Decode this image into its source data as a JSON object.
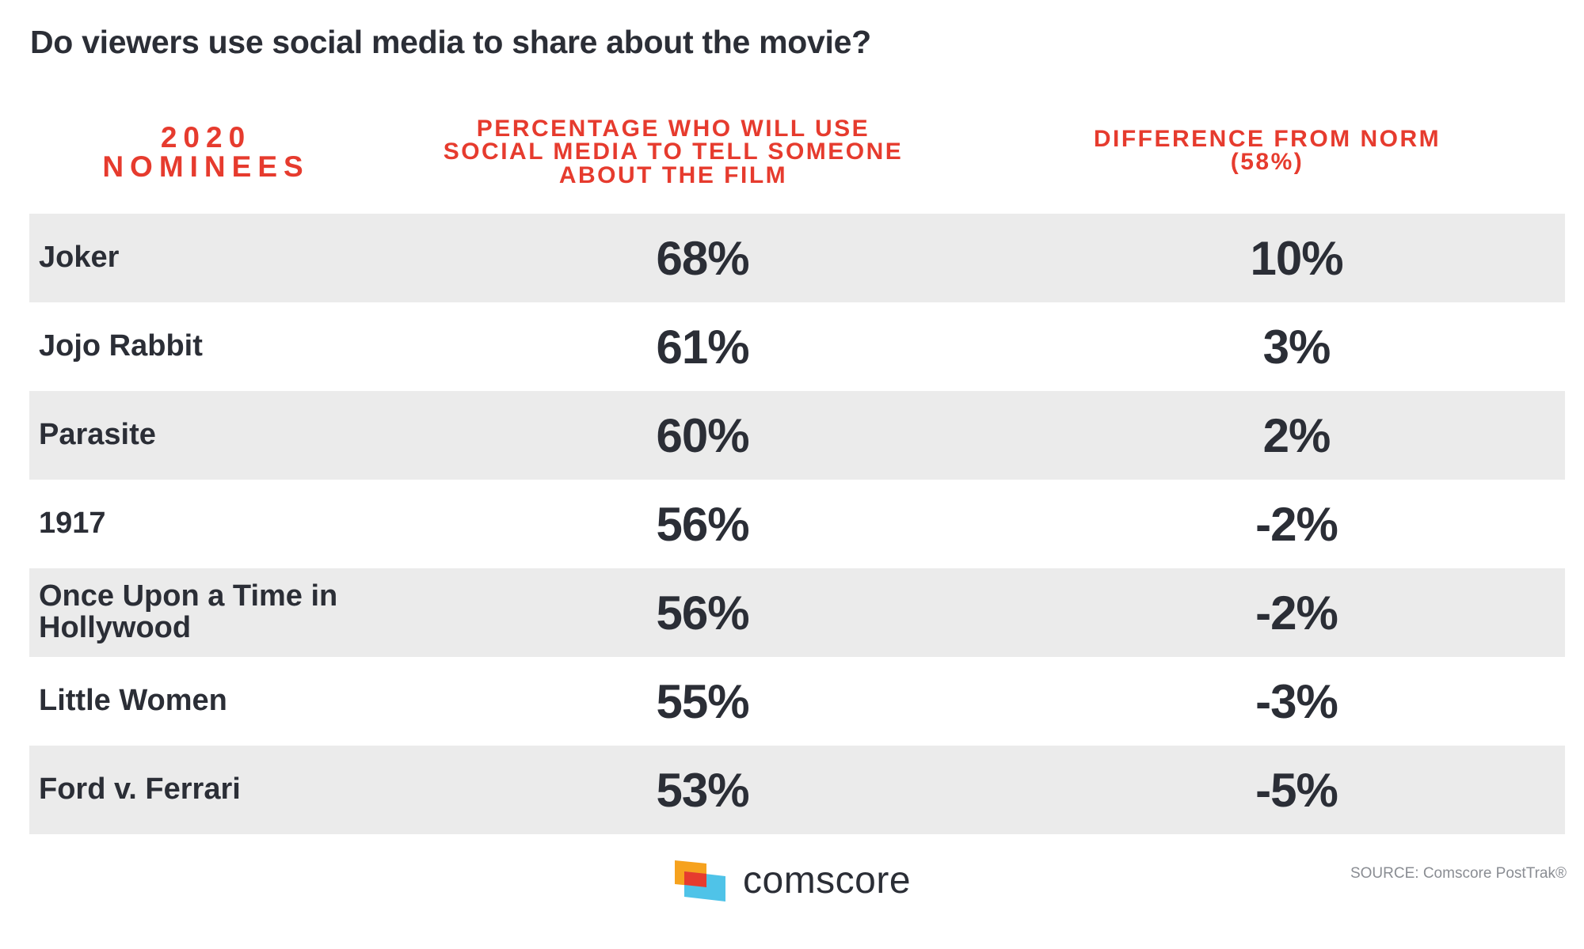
{
  "title": "Do viewers use social media to share about the movie?",
  "headers": {
    "nominees": "2020 NOMINEES",
    "percentage": "PERCENTAGE WHO WILL USE SOCIAL MEDIA TO TELL SOMEONE ABOUT THE FILM",
    "difference": "DIFFERENCE FROM NORM (58%)"
  },
  "rows": [
    {
      "name": "Joker",
      "value": "68%",
      "diff": "10%"
    },
    {
      "name": "Jojo Rabbit",
      "value": "61%",
      "diff": "3%"
    },
    {
      "name": "Parasite",
      "value": "60%",
      "diff": "2%"
    },
    {
      "name": "1917",
      "value": "56%",
      "diff": "-2%"
    },
    {
      "name": "Once Upon a Time in Hollywood",
      "value": "56%",
      "diff": "-2%"
    },
    {
      "name": "Little Women",
      "value": "55%",
      "diff": "-3%"
    },
    {
      "name": "Ford v. Ferrari",
      "value": "53%",
      "diff": "-5%"
    }
  ],
  "logo_text": "comscore",
  "source": "SOURCE: Comscore PostTrak®",
  "colors": {
    "header_red": "#e63b2e",
    "text_dark": "#2b2e36",
    "row_shade": "#ebebeb"
  },
  "chart_data": {
    "type": "table",
    "title": "Do viewers use social media to share about the movie?",
    "columns": [
      "2020 NOMINEES",
      "PERCENTAGE WHO WILL USE SOCIAL MEDIA TO TELL SOMEONE ABOUT THE FILM",
      "DIFFERENCE FROM NORM (58%)"
    ],
    "categories": [
      "Joker",
      "Jojo Rabbit",
      "Parasite",
      "1917",
      "Once Upon a Time in Hollywood",
      "Little Women",
      "Ford v. Ferrari"
    ],
    "series": [
      {
        "name": "PERCENTAGE WHO WILL USE SOCIAL MEDIA TO TELL SOMEONE ABOUT THE FILM",
        "values": [
          68,
          61,
          60,
          56,
          56,
          55,
          53
        ]
      },
      {
        "name": "DIFFERENCE FROM NORM (58%)",
        "values": [
          10,
          3,
          2,
          -2,
          -2,
          -3,
          -5
        ]
      }
    ],
    "norm": 58
  }
}
